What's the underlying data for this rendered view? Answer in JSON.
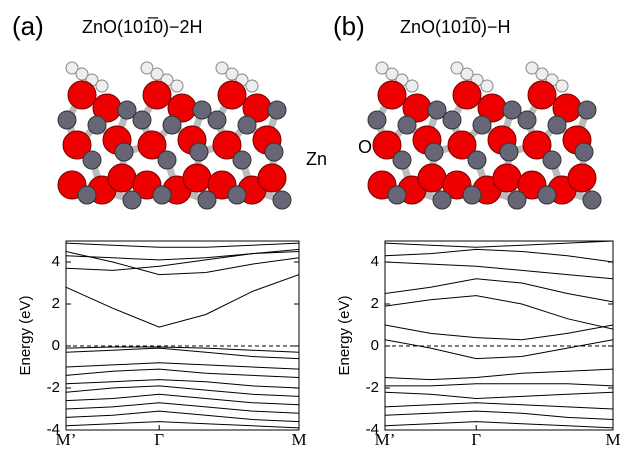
{
  "chart_data": [
    {
      "type": "line",
      "panel": "(a)",
      "title": "ZnO(101̅0)−2H",
      "atom_label": "Zn",
      "ylabel": "Energy  (eV)",
      "color": "#000000",
      "reference_line": 0,
      "xlim": [
        0,
        1
      ],
      "xticks": [
        {
          "value": 0,
          "label": "M’"
        },
        {
          "value": 0.4,
          "label": "Γ"
        },
        {
          "value": 1,
          "label": "M"
        }
      ],
      "ylim": [
        -4,
        5
      ],
      "yticks": [
        -4,
        -2,
        0,
        2,
        4
      ],
      "x": [
        0,
        0.2,
        0.4,
        0.6,
        0.8,
        1
      ],
      "series": [
        {
          "values": [
            4.9,
            4.8,
            4.7,
            4.7,
            4.8,
            4.9
          ]
        },
        {
          "values": [
            4.3,
            4.2,
            4.1,
            4.2,
            4.4,
            4.6
          ]
        },
        {
          "values": [
            3.7,
            3.6,
            3.8,
            4.1,
            4.4,
            4.5
          ]
        },
        {
          "values": [
            4.5,
            4.0,
            3.4,
            3.5,
            3.9,
            4.2
          ]
        },
        {
          "values": [
            2.8,
            1.8,
            0.9,
            1.5,
            2.6,
            3.4
          ]
        },
        {
          "values": [
            -0.1,
            -0.05,
            -0.05,
            -0.1,
            -0.2,
            -0.3
          ]
        },
        {
          "values": [
            -0.3,
            -0.2,
            -0.1,
            -0.3,
            -0.5,
            -0.6
          ]
        },
        {
          "values": [
            -1.0,
            -0.9,
            -0.8,
            -0.9,
            -1.0,
            -1.1
          ]
        },
        {
          "values": [
            -1.4,
            -1.2,
            -1.1,
            -1.3,
            -1.4,
            -1.5
          ]
        },
        {
          "values": [
            -1.8,
            -1.7,
            -1.6,
            -1.7,
            -1.9,
            -2.0
          ]
        },
        {
          "values": [
            -2.2,
            -2.0,
            -1.9,
            -2.1,
            -2.3,
            -2.4
          ]
        },
        {
          "values": [
            -2.6,
            -2.5,
            -2.3,
            -2.5,
            -2.7,
            -2.8
          ]
        },
        {
          "values": [
            -3.0,
            -2.9,
            -2.7,
            -2.9,
            -3.1,
            -3.2
          ]
        },
        {
          "values": [
            -3.4,
            -3.3,
            -3.1,
            -3.3,
            -3.5,
            -3.6
          ]
        },
        {
          "values": [
            -3.8,
            -3.7,
            -3.6,
            -3.7,
            -3.8,
            -3.9
          ]
        }
      ]
    },
    {
      "type": "line",
      "panel": "(b)",
      "title": "ZnO(101̅0)−H",
      "atom_label": "O",
      "ylabel": "Energy  (eV)",
      "color": "#000000",
      "reference_line": 0,
      "xlim": [
        0,
        1
      ],
      "xticks": [
        {
          "value": 0,
          "label": "M’"
        },
        {
          "value": 0.4,
          "label": "Γ"
        },
        {
          "value": 1,
          "label": "M"
        }
      ],
      "ylim": [
        -4,
        5
      ],
      "yticks": [
        -4,
        -2,
        0,
        2,
        4
      ],
      "x": [
        0,
        0.2,
        0.4,
        0.6,
        0.8,
        1
      ],
      "series": [
        {
          "values": [
            4.9,
            4.8,
            4.7,
            4.8,
            4.9,
            5.0
          ]
        },
        {
          "values": [
            4.3,
            4.4,
            4.6,
            4.5,
            4.3,
            4.0
          ]
        },
        {
          "values": [
            4.0,
            3.9,
            3.8,
            3.6,
            3.4,
            3.2
          ]
        },
        {
          "values": [
            2.5,
            2.8,
            3.2,
            3.0,
            2.5,
            2.1
          ]
        },
        {
          "values": [
            1.9,
            2.2,
            2.4,
            2.0,
            1.3,
            0.8
          ]
        },
        {
          "values": [
            1.0,
            0.6,
            0.4,
            0.3,
            0.6,
            1.0
          ]
        },
        {
          "values": [
            0.3,
            -0.1,
            -0.6,
            -0.5,
            -0.1,
            0.3
          ]
        },
        {
          "values": [
            -1.5,
            -1.6,
            -1.5,
            -1.3,
            -1.2,
            -1.1
          ]
        },
        {
          "values": [
            -1.9,
            -1.9,
            -1.8,
            -1.8,
            -1.8,
            -1.9
          ]
        },
        {
          "values": [
            -2.2,
            -2.3,
            -2.5,
            -2.4,
            -2.3,
            -2.2
          ]
        },
        {
          "values": [
            -2.9,
            -2.8,
            -2.7,
            -2.8,
            -2.9,
            -3.0
          ]
        },
        {
          "values": [
            -3.3,
            -3.2,
            -3.1,
            -3.2,
            -3.4,
            -3.5
          ]
        },
        {
          "values": [
            -3.8,
            -3.7,
            -3.6,
            -3.7,
            -3.8,
            -3.9
          ]
        }
      ]
    }
  ]
}
